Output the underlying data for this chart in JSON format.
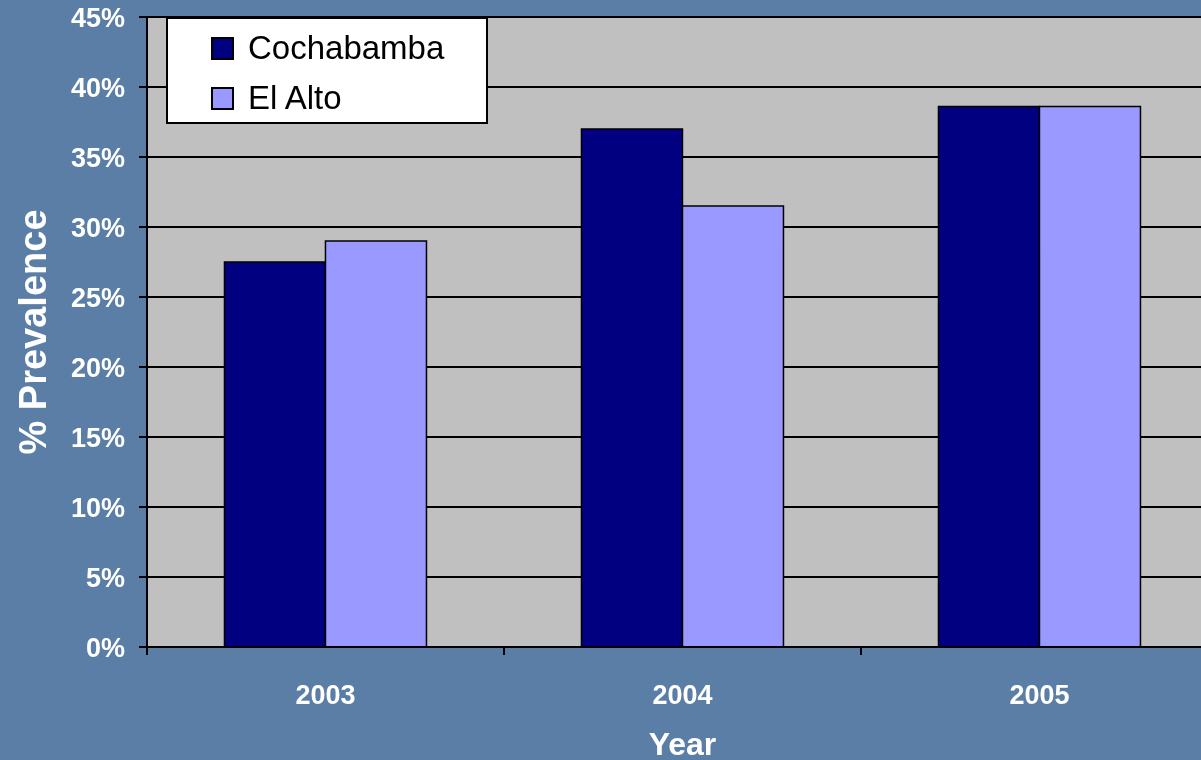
{
  "chart_data": {
    "type": "bar",
    "categories": [
      "2003",
      "2004",
      "2005"
    ],
    "series": [
      {
        "name": "Cochabamba",
        "color": "#000080",
        "values": [
          27.5,
          37,
          38.6
        ]
      },
      {
        "name": "El Alto",
        "color": "#9999ff",
        "values": [
          29,
          31.5,
          38.6
        ]
      }
    ],
    "xlabel": "Year",
    "ylabel": "% Prevalence",
    "ylim": [
      0,
      45
    ],
    "yticks": [
      {
        "value": 0,
        "label": "0%"
      },
      {
        "value": 5,
        "label": "5%"
      },
      {
        "value": 10,
        "label": "10%"
      },
      {
        "value": 15,
        "label": "15%"
      },
      {
        "value": 20,
        "label": "20%"
      },
      {
        "value": 25,
        "label": "25%"
      },
      {
        "value": 30,
        "label": "30%"
      },
      {
        "value": 35,
        "label": "35%"
      },
      {
        "value": 40,
        "label": "40%"
      },
      {
        "value": 45,
        "label": "45%"
      }
    ],
    "grid": "y",
    "legend": "top left"
  }
}
